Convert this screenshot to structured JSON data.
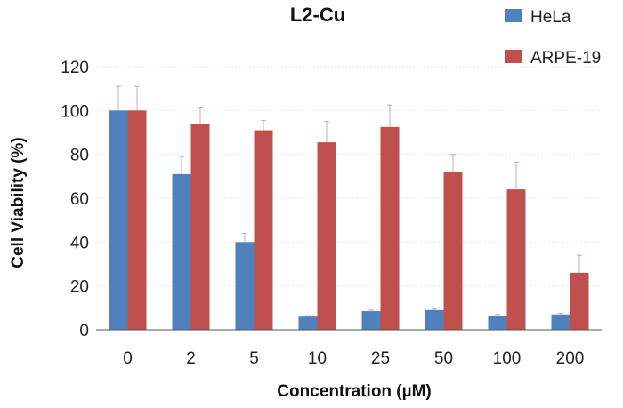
{
  "chart_data": {
    "type": "bar",
    "title": "L2-Cu",
    "xlabel": "Concentration (µM)",
    "ylabel": "Cell Viability (%)",
    "categories": [
      "0",
      "2",
      "5",
      "10",
      "25",
      "50",
      "100",
      "200"
    ],
    "ylim": [
      0,
      120
    ],
    "yticks": [
      "0",
      "20",
      "40",
      "60",
      "80",
      "100",
      "120"
    ],
    "grid": true,
    "legend_position": "top-right",
    "series": [
      {
        "name": "HeLa",
        "color": "#4f81bd",
        "values": [
          100,
          71,
          40,
          6,
          8.5,
          9,
          6.5,
          7
        ],
        "errors": [
          11,
          8,
          4,
          0.5,
          0.5,
          0.5,
          0.5,
          0.5
        ]
      },
      {
        "name": "ARPE-19",
        "color": "#c0504d",
        "values": [
          100,
          94,
          91,
          85.5,
          92.5,
          72,
          64,
          26
        ],
        "errors": [
          11,
          7.5,
          4.5,
          9.5,
          10,
          8,
          12.5,
          8
        ]
      }
    ]
  }
}
